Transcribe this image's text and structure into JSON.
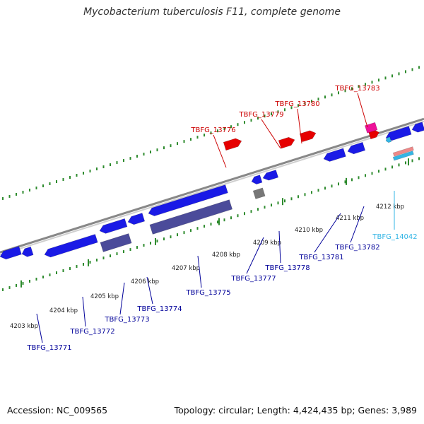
{
  "title": "Mycobacterium tuberculosis F11, complete genome",
  "footer": {
    "accession": "Accession: NC_009565",
    "summary": "Topology: circular; Length: 4,424,435 bp; Genes: 3,989"
  },
  "colors": {
    "backbone": "#9a9a9a",
    "tick": "#2e8b2e",
    "forward_gene": "#e60000",
    "forward_label": "#cc0000",
    "reverse_gene": "#1a1ae6",
    "reverse_label": "#000099",
    "pseudo_gene": "#4b4b9a",
    "rna_label": "#33b5e5",
    "magenta_gene": "#ee1199",
    "grey_gene": "#777777"
  },
  "scale_labels": [
    "4203 kbp",
    "4204 kbp",
    "4205 kbp",
    "4206 kbp",
    "4207 kbp",
    "4208 kbp",
    "4209 kbp",
    "4210 kbp",
    "4211 kbp",
    "4212 kbp"
  ],
  "forward_gene_labels": [
    "TBFG_13776",
    "TBFG_13779",
    "TBFG_13780",
    "TBFG_13783"
  ],
  "reverse_gene_labels": [
    "TBFG_13771",
    "TBFG_13772",
    "TBFG_13773",
    "TBFG_13774",
    "TBFG_13775",
    "TBFG_13777",
    "TBFG_13778",
    "TBFG_13781",
    "TBFG_13782"
  ],
  "rna_gene_labels": [
    "TBFG_14042"
  ]
}
